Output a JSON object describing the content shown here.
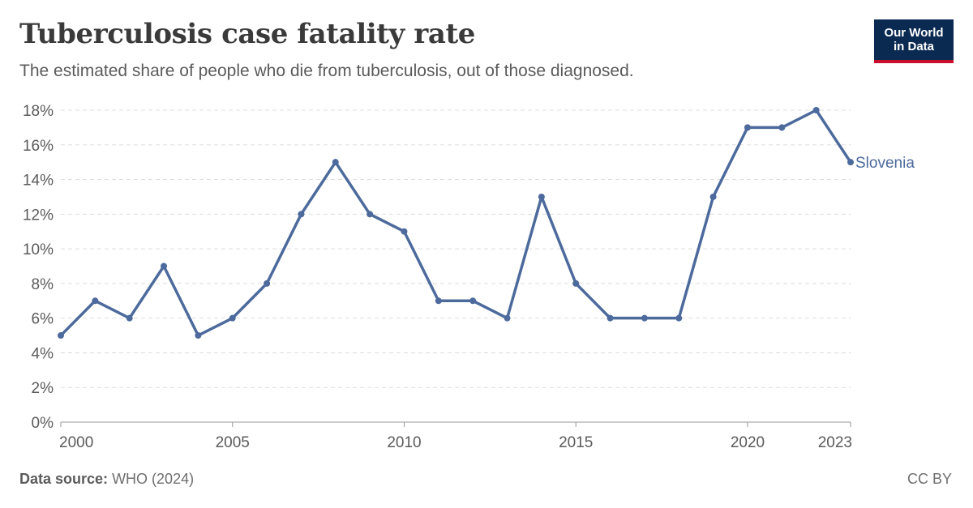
{
  "header": {
    "title": "Tuberculosis case fatality rate",
    "subtitle": "The estimated share of people who die from tuberculosis, out of those diagnosed."
  },
  "logo": {
    "line1": "Our World",
    "line2": "in Data"
  },
  "footer": {
    "source_label": "Data source:",
    "source_text": "WHO (2024)",
    "license": "CC BY"
  },
  "colors": {
    "series": "#4c6a9c",
    "grid": "#dddddd",
    "axis_text": "#5b5b5b",
    "logo_bg": "#0b2a52",
    "logo_accent": "#c8102e"
  },
  "chart_data": {
    "type": "line",
    "title": "Tuberculosis case fatality rate",
    "xlabel": "",
    "ylabel": "",
    "xlim": [
      2000,
      2023
    ],
    "ylim": [
      0,
      18
    ],
    "x_ticks": [
      2000,
      2005,
      2010,
      2015,
      2020,
      2023
    ],
    "y_ticks": [
      0,
      2,
      4,
      6,
      8,
      10,
      12,
      14,
      16,
      18
    ],
    "y_tick_labels": [
      "0%",
      "2%",
      "4%",
      "6%",
      "8%",
      "10%",
      "12%",
      "14%",
      "16%",
      "18%"
    ],
    "grid": "horizontal dashed",
    "series": [
      {
        "name": "Slovenia",
        "x": [
          2000,
          2001,
          2002,
          2003,
          2004,
          2005,
          2006,
          2007,
          2008,
          2009,
          2010,
          2011,
          2012,
          2013,
          2014,
          2015,
          2016,
          2017,
          2018,
          2019,
          2020,
          2021,
          2022,
          2023
        ],
        "values": [
          5,
          7,
          6,
          9,
          5,
          6,
          8,
          12,
          15,
          12,
          11,
          7,
          7,
          6,
          13,
          8,
          6,
          6,
          6,
          13,
          17,
          17,
          18,
          15
        ]
      }
    ]
  }
}
